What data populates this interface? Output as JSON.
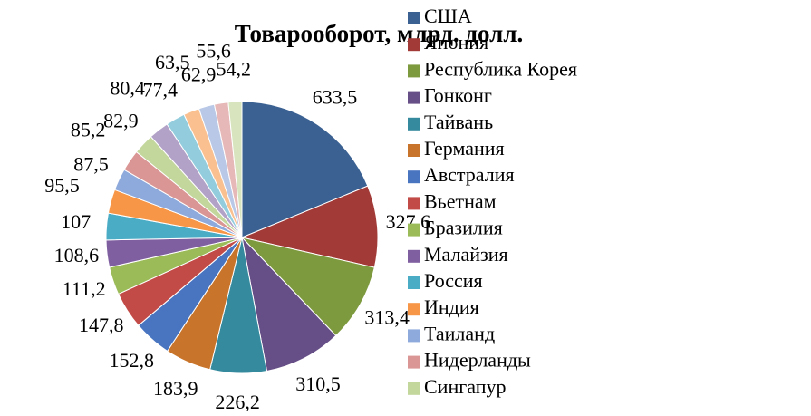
{
  "chart_data": {
    "type": "pie",
    "title": "Товарооборот, млрд. долл.",
    "categories": [
      "США",
      "Япония",
      "Республика Корея",
      "Гонконг",
      "Тайвань",
      "Германия",
      "Австралия",
      "Вьетнам",
      "Бразилия",
      "Малайзия",
      "Россия",
      "Индия",
      "Таиланд",
      "Нидерланды",
      "Сингапур",
      null,
      null,
      null,
      null,
      null,
      null
    ],
    "values": [
      633.5,
      327.6,
      313.4,
      310.5,
      226.2,
      183.9,
      152.8,
      147.8,
      111.2,
      108.6,
      107,
      95.5,
      87.5,
      85.2,
      82.9,
      80.4,
      77.4,
      63.5,
      62.9,
      55.6,
      54.2
    ],
    "value_labels": [
      "633,5",
      "327,6",
      "313,4",
      "310,5",
      "226,2",
      "183,9",
      "152,8",
      "147,8",
      "111,2",
      "108,6",
      "107",
      "95,5",
      "87,5",
      "85,2",
      "82,9",
      "80,4",
      "77,4",
      "63,5",
      "62,9",
      "55,6",
      "54,2"
    ],
    "colors": [
      "#3A6192",
      "#A23B38",
      "#7E9A3E",
      "#664E86",
      "#358A9E",
      "#C8742A",
      "#4975C0",
      "#C24B48",
      "#9BBB59",
      "#7F5FA0",
      "#4BACC6",
      "#F79646",
      "#8EA9DB",
      "#D99694",
      "#C3D69B",
      "#B3A2C7",
      "#93CDDD",
      "#FAC08F",
      "#B9C8E6",
      "#E6B9B8",
      "#D7E4BD"
    ]
  }
}
